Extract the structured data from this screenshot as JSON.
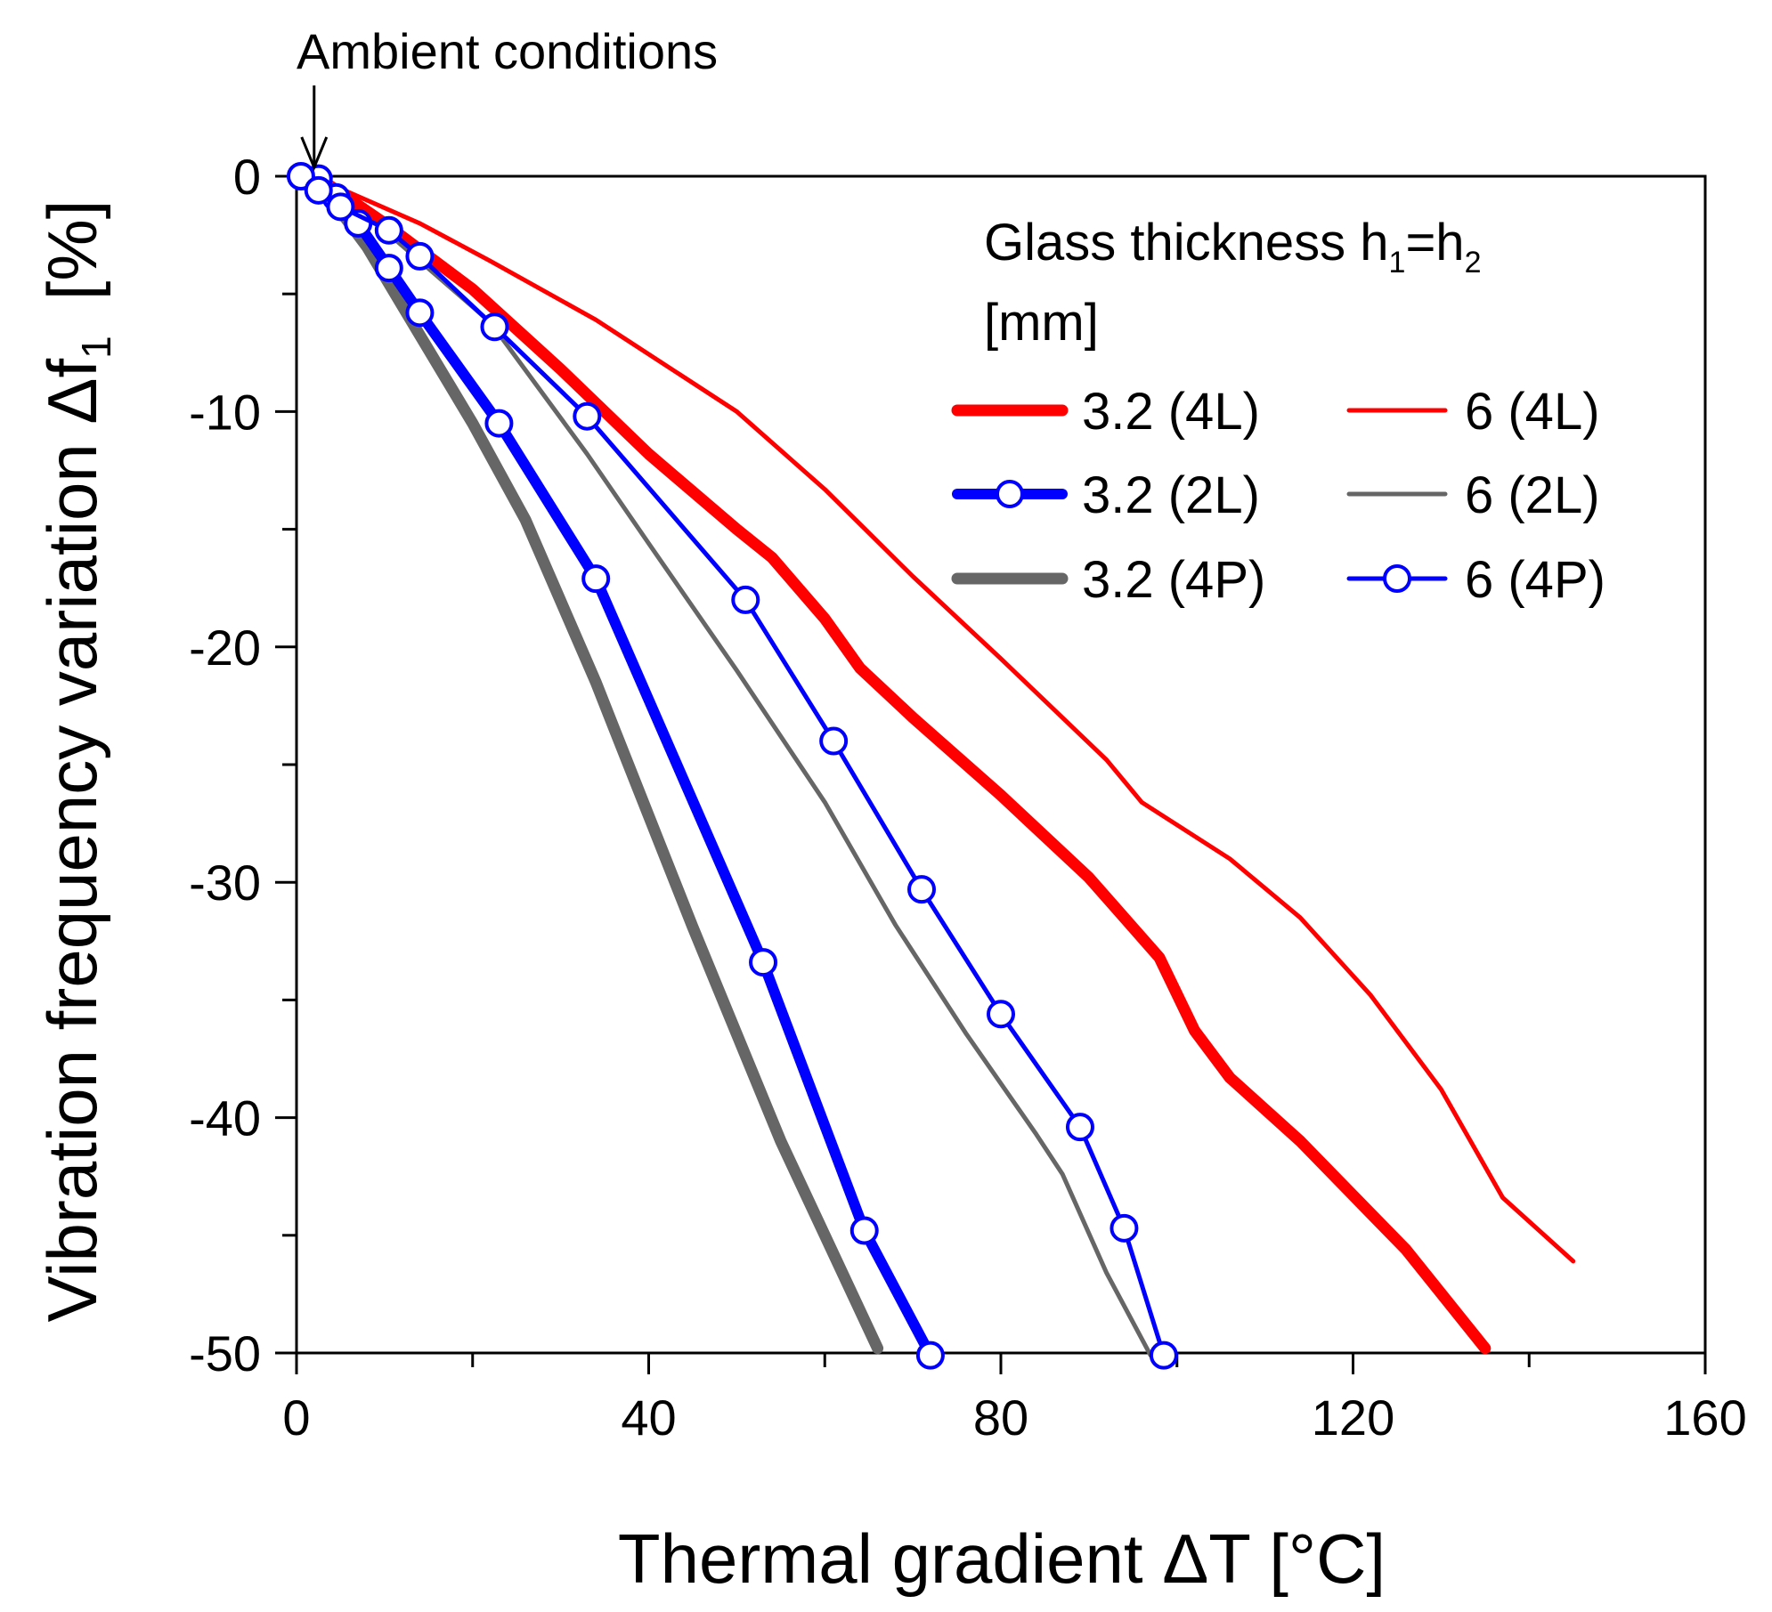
{
  "chart_data": {
    "type": "line",
    "title": "",
    "xlabel": "Thermal gradient ΔT  [°C]",
    "ylabel": "Vibration frequency variation Δf",
    "ylabel_sub": "1",
    "ylabel_unit": "[%]",
    "xlim": [
      0,
      160
    ],
    "ylim": [
      -50,
      0
    ],
    "x_ticks": [
      0,
      40,
      80,
      120,
      160
    ],
    "y_ticks": [
      0,
      -10,
      -20,
      -30,
      -40,
      -50
    ],
    "x_tick_labels": [
      "0",
      "40",
      "80",
      "120",
      "160"
    ],
    "y_tick_labels": [
      "0",
      "-10",
      "-20",
      "-30",
      "-40",
      "-50"
    ],
    "grid": false,
    "legend": {
      "title_main": "Glass thickness h",
      "title_sub1": "1",
      "title_eq": "=h",
      "title_sub2": "2",
      "title_unit": "[mm]",
      "placement": "top-right"
    },
    "annotation": {
      "text": "Ambient conditions",
      "x": 2,
      "y": 0
    },
    "series": [
      {
        "name": "3.2 (4L)",
        "color": "#ff0000",
        "style": "thick",
        "markers": false,
        "points": [
          [
            1,
            0
          ],
          [
            3,
            -0.2
          ],
          [
            10,
            -2
          ],
          [
            20,
            -4.8
          ],
          [
            30,
            -8.2
          ],
          [
            40,
            -11.8
          ],
          [
            50,
            -15
          ],
          [
            54,
            -16.2
          ],
          [
            60,
            -18.8
          ],
          [
            64,
            -20.9
          ],
          [
            70,
            -23
          ],
          [
            80,
            -26.3
          ],
          [
            90,
            -29.8
          ],
          [
            98,
            -33.2
          ],
          [
            102,
            -36.3
          ],
          [
            106,
            -38.3
          ],
          [
            114,
            -41
          ],
          [
            120,
            -43.3
          ],
          [
            126,
            -45.6
          ],
          [
            135,
            -49.8
          ]
        ]
      },
      {
        "name": "3.2 (2L)",
        "color": "#0000ff",
        "style": "thick",
        "markers": true,
        "points": [
          [
            2.5,
            -0.1
          ],
          [
            4.5,
            -0.9
          ],
          [
            7,
            -2
          ],
          [
            10.5,
            -3.9
          ],
          [
            14,
            -5.8
          ],
          [
            23,
            -10.5
          ],
          [
            34,
            -17.1
          ],
          [
            53,
            -33.4
          ],
          [
            64.5,
            -44.8
          ],
          [
            72,
            -50.1
          ]
        ]
      },
      {
        "name": "3.2 (4P)",
        "color": "#666666",
        "style": "thick",
        "markers": false,
        "points": [
          [
            1,
            0
          ],
          [
            4,
            -1
          ],
          [
            8,
            -3
          ],
          [
            12,
            -5.5
          ],
          [
            20,
            -10.5
          ],
          [
            26,
            -14.6
          ],
          [
            34,
            -21.5
          ],
          [
            36,
            -23.4
          ],
          [
            45,
            -31.9
          ],
          [
            55,
            -41
          ],
          [
            66,
            -49.8
          ]
        ]
      },
      {
        "name": "6 (4L)",
        "color": "#ff0000",
        "style": "thin",
        "markers": false,
        "points": [
          [
            1,
            0
          ],
          [
            3,
            -0.2
          ],
          [
            14,
            -2
          ],
          [
            22,
            -3.6
          ],
          [
            34,
            -6.1
          ],
          [
            50,
            -10
          ],
          [
            60,
            -13.3
          ],
          [
            70,
            -17
          ],
          [
            80,
            -20.5
          ],
          [
            92,
            -24.8
          ],
          [
            96,
            -26.6
          ],
          [
            106,
            -29
          ],
          [
            114,
            -31.5
          ],
          [
            122,
            -34.8
          ],
          [
            130,
            -38.8
          ],
          [
            137,
            -43.4
          ],
          [
            145,
            -46.1
          ]
        ]
      },
      {
        "name": "6 (2L)",
        "color": "#666666",
        "style": "thin",
        "markers": false,
        "points": [
          [
            1,
            0
          ],
          [
            3,
            -0.1
          ],
          [
            10,
            -2.3
          ],
          [
            22,
            -6.2
          ],
          [
            33,
            -11.8
          ],
          [
            40,
            -15.6
          ],
          [
            50,
            -21
          ],
          [
            60,
            -26.6
          ],
          [
            68,
            -31.8
          ],
          [
            76,
            -36.4
          ],
          [
            84,
            -40.7
          ],
          [
            87,
            -42.4
          ],
          [
            92,
            -46.6
          ],
          [
            97,
            -50.1
          ]
        ]
      },
      {
        "name": "6 (4P)",
        "color": "#0000ff",
        "style": "thin",
        "markers": true,
        "points": [
          [
            0.5,
            0
          ],
          [
            2.5,
            -0.6
          ],
          [
            5,
            -1.3
          ],
          [
            10.5,
            -2.3
          ],
          [
            14,
            -3.4
          ],
          [
            22.5,
            -6.4
          ],
          [
            33,
            -10.2
          ],
          [
            51,
            -18
          ],
          [
            61,
            -24
          ],
          [
            71,
            -30.3
          ],
          [
            80,
            -35.6
          ],
          [
            89,
            -40.4
          ],
          [
            94,
            -44.7
          ],
          [
            98.5,
            -50.1
          ]
        ]
      }
    ]
  }
}
